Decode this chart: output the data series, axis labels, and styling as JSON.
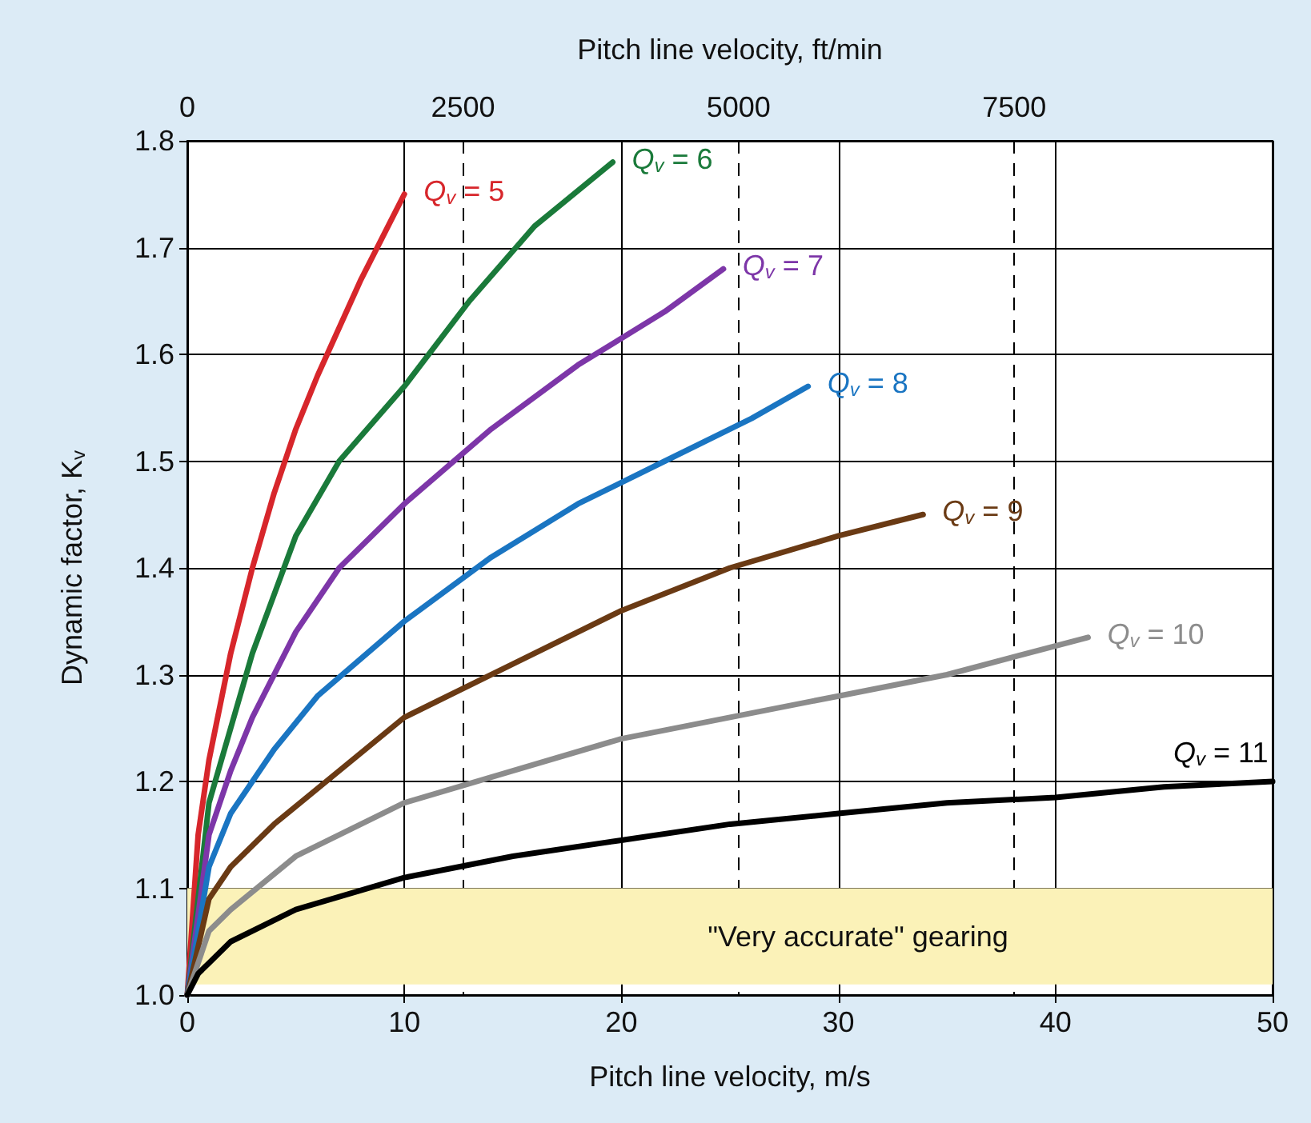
{
  "chart_data": {
    "type": "line",
    "xlabel": "Pitch line velocity, m/s",
    "x2label": "Pitch line velocity, ft/min",
    "ylabel": "Dynamic factor, K$_{v}$",
    "xlim": [
      0,
      50
    ],
    "xticks": [
      0,
      10,
      20,
      30,
      40,
      50
    ],
    "x2lim": [
      0,
      9843
    ],
    "x2ticks": [
      0,
      2500,
      5000,
      7500
    ],
    "ylim": [
      1.0,
      1.8
    ],
    "yticks": [
      {
        "value": 1.0,
        "label": "1.0"
      },
      1.1,
      1.2,
      1.3,
      1.4,
      1.5,
      1.6,
      1.7,
      1.8
    ],
    "grid": true,
    "marker": "none",
    "legend": false,
    "bands": [
      {
        "axis": "y",
        "from": 1.01,
        "to": 1.1,
        "label": "\"Very accurate\" gearing",
        "color": "#fbf2b8"
      }
    ],
    "series": [
      {
        "name": "Q$_{v}$ = 5",
        "color": "#d7262b",
        "x": [
          0,
          0.5,
          1,
          2,
          3,
          4,
          5,
          6,
          8,
          10
        ],
        "values": [
          1.0,
          1.15,
          1.22,
          1.32,
          1.4,
          1.47,
          1.53,
          1.58,
          1.67,
          1.75
        ]
      },
      {
        "name": "Q$_{v}$ = 6",
        "color": "#1a7a3a",
        "x": [
          0,
          1,
          2,
          3,
          5,
          7,
          10,
          13,
          16,
          19.6
        ],
        "values": [
          1.0,
          1.18,
          1.25,
          1.32,
          1.43,
          1.5,
          1.57,
          1.65,
          1.72,
          1.78
        ]
      },
      {
        "name": "Q$_{v}$ = 7",
        "color": "#7d36a8",
        "x": [
          0,
          1,
          2,
          3,
          5,
          7,
          10,
          14,
          18,
          22,
          24.7
        ],
        "values": [
          1.0,
          1.15,
          1.21,
          1.26,
          1.34,
          1.4,
          1.46,
          1.53,
          1.59,
          1.64,
          1.68
        ]
      },
      {
        "name": "Q$_{v}$ = 8",
        "color": "#1a75c2",
        "x": [
          0,
          1,
          2,
          4,
          6,
          10,
          14,
          18,
          22,
          26,
          28.6
        ],
        "values": [
          1.0,
          1.12,
          1.17,
          1.23,
          1.28,
          1.35,
          1.41,
          1.46,
          1.5,
          1.54,
          1.57
        ]
      },
      {
        "name": "Q$_{v}$ = 9",
        "color": "#6a3a14",
        "x": [
          0,
          1,
          2,
          4,
          7,
          10,
          15,
          20,
          25,
          30,
          33.9
        ],
        "values": [
          1.0,
          1.09,
          1.12,
          1.16,
          1.21,
          1.26,
          1.31,
          1.36,
          1.4,
          1.43,
          1.45
        ]
      },
      {
        "name": "Q$_{v}$ = 10",
        "color": "#8c8c8c",
        "x": [
          0,
          1,
          2,
          5,
          10,
          15,
          20,
          25,
          30,
          35,
          41.5
        ],
        "values": [
          1.0,
          1.06,
          1.08,
          1.13,
          1.18,
          1.21,
          1.24,
          1.26,
          1.28,
          1.3,
          1.335
        ]
      },
      {
        "name": "Q$_{v}$ = 11",
        "color": "#000000",
        "x": [
          0,
          0.5,
          1,
          2,
          5,
          10,
          15,
          20,
          25,
          30,
          35,
          40,
          45,
          50
        ],
        "values": [
          1.0,
          1.02,
          1.03,
          1.05,
          1.08,
          1.11,
          1.13,
          1.145,
          1.16,
          1.17,
          1.18,
          1.185,
          1.195,
          1.2
        ]
      }
    ]
  }
}
